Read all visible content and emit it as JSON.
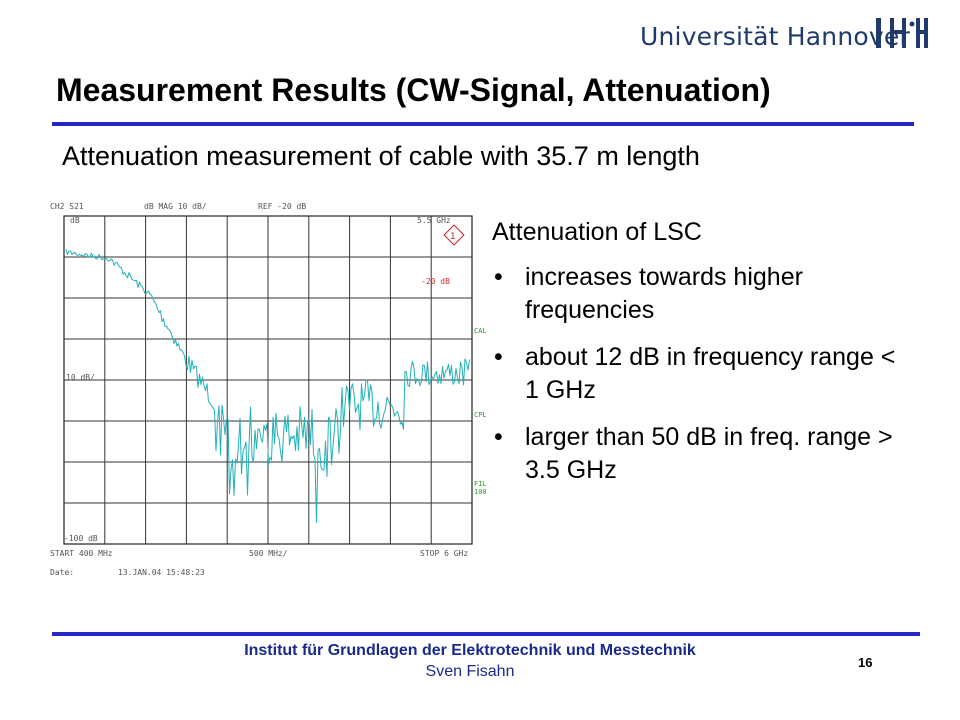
{
  "header": {
    "university": "Universität Hannover"
  },
  "slide": {
    "title": "Measurement Results (CW-Signal, Attenuation)",
    "subtitle": "Attenuation measurement of cable with 35.7 m length",
    "heading": "Attenuation of LSC",
    "bullets": [
      "increases towards higher frequencies",
      "about 12 dB in frequency range < 1 GHz",
      "larger than 50 dB in freq. range > 3.5 GHz"
    ]
  },
  "analyzer": {
    "channel": "CH2 S21",
    "mode": "dB  MAG 10 dB/",
    "ref": "REF -20 dB",
    "ref_level": "dB",
    "marker_freq": "5.5 GHz",
    "marker_value": "-20 dB",
    "scale": "10 dB/",
    "bottom_ref": "-100 dB",
    "start": "START  400 MHz",
    "span": "500 MHz/",
    "stop": "STOP 6 GHz",
    "date_label": "Date:",
    "date_value": "13.JAN.04  15:48:23",
    "side_cal": "CAL",
    "side_cpl": "CPL",
    "side_fil": "FIL",
    "side_fil_val": "100",
    "trace_color": "#22b0b8"
  },
  "footer": {
    "institute": "Institut für Grundlagen der Elektrotechnik und Messtechnik",
    "author": "Sven Fisahn",
    "page": "16"
  },
  "colors": {
    "accent_rule": "#2525c8",
    "footer_text": "#1a2a8c",
    "university_text": "#1f3a6b"
  }
}
